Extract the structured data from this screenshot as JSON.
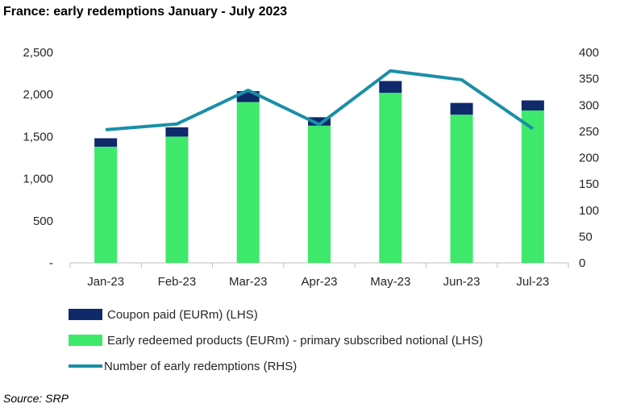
{
  "title": "France: early redemptions January - July 2023",
  "source": "Source: SRP",
  "colors": {
    "coupon": "#0e2a6b",
    "early": "#3ee86b",
    "line": "#1a8fa6"
  },
  "chart_data": {
    "type": "bar",
    "stacked": true,
    "categories": [
      "Jan-23",
      "Feb-23",
      "Mar-23",
      "Apr-23",
      "May-23",
      "Jun-23",
      "Jul-23"
    ],
    "series": [
      {
        "name": "Early redeemed products (EURm) - primary subscribed notional (LHS)",
        "axis": "left",
        "type": "bar",
        "values": [
          1380,
          1500,
          1910,
          1630,
          2020,
          1760,
          1810
        ]
      },
      {
        "name": "Coupon paid (EURm) (LHS)",
        "axis": "left",
        "type": "bar",
        "values": [
          100,
          110,
          130,
          100,
          140,
          140,
          120
        ]
      },
      {
        "name": "Number of early redemptions (RHS)",
        "axis": "right",
        "type": "line",
        "values": [
          253,
          264,
          328,
          263,
          365,
          348,
          255
        ]
      }
    ],
    "left_axis": {
      "ticks": [
        "-",
        "500",
        "1,000",
        "1,500",
        "2,000",
        "2,500"
      ],
      "tick_values": [
        0,
        500,
        1000,
        1500,
        2000,
        2500
      ],
      "ylim": [
        0,
        2500
      ]
    },
    "right_axis": {
      "ticks": [
        "0",
        "50",
        "100",
        "150",
        "200",
        "250",
        "300",
        "350",
        "400"
      ],
      "tick_values": [
        0,
        50,
        100,
        150,
        200,
        250,
        300,
        350,
        400
      ],
      "ylim": [
        0,
        400
      ]
    },
    "legend": [
      "Coupon paid (EURm) (LHS)",
      "Early redeemed products (EURm) - primary subscribed notional (LHS)",
      "Number of early redemptions (RHS)"
    ],
    "legend_position": "bottom",
    "grid": false
  }
}
